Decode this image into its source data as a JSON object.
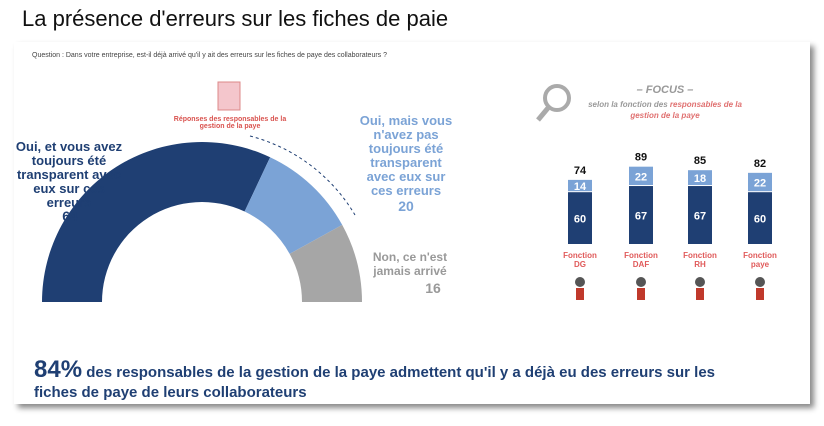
{
  "title": "La présence d'erreurs sur les fiches de paie",
  "question": "Question : Dans votre entreprise, est-il déjà arrivé qu'il y ait des erreurs sur les fiches de paye des collaborateurs ?",
  "conclusion": {
    "highlight": "84%",
    "text": "des responsables de la gestion de la paye admettent qu'il y a déjà eu des erreurs sur les fiches de paye de leurs collaborateurs"
  },
  "chart_data": [
    {
      "type": "semi-donut",
      "center_label": "Réponses des responsables de la gestion de la paye",
      "categories": [
        "Oui, et vous avez toujours été transparent avec eux sur ces erreurs",
        "Oui, mais vous n'avez pas toujours été transparent avec eux sur ces erreurs",
        "Non, ce n'est jamais arrivé"
      ],
      "values": [
        64,
        20,
        16
      ],
      "colors": [
        "#1f3f73",
        "#7ba3d6",
        "#a6a6a6"
      ]
    },
    {
      "type": "stacked-bar",
      "title": "– FOCUS –",
      "subtitle": [
        "selon la fonction des",
        "responsables de la gestion de la paye"
      ],
      "categories": [
        "Fonction DG",
        "Fonction DAF",
        "Fonction RH",
        "Fonction paye"
      ],
      "series": [
        {
          "color": "#1f3f73",
          "values": [
            60,
            67,
            67,
            60
          ]
        },
        {
          "color": "#7ba3d6",
          "values": [
            14,
            22,
            18,
            22
          ]
        }
      ],
      "totals": [
        74,
        89,
        85,
        82
      ]
    }
  ]
}
